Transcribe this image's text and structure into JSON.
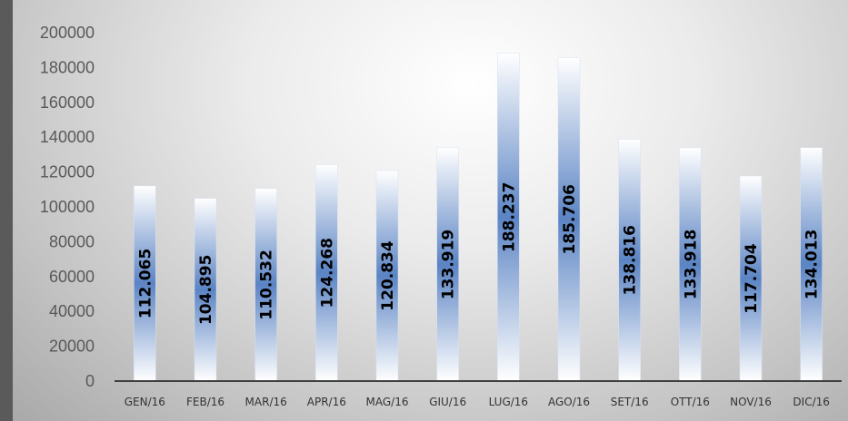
{
  "chart_data": {
    "type": "bar",
    "title": "",
    "xlabel": "",
    "ylabel": "",
    "categories": [
      "GEN/16",
      "FEB/16",
      "MAR/16",
      "APR/16",
      "MAG/16",
      "GIU/16",
      "LUG/16",
      "AGO/16",
      "SET/16",
      "OTT/16",
      "NOV/16",
      "DIC/16"
    ],
    "values": [
      112065,
      104895,
      110532,
      124268,
      120834,
      133919,
      188237,
      185706,
      138816,
      133918,
      117704,
      134013
    ],
    "data_labels": [
      "112.065",
      "104.895",
      "110.532",
      "124.268",
      "120.834",
      "133.919",
      "188.237",
      "185.706",
      "138.816",
      "133.918",
      "117.704",
      "134.013"
    ],
    "yticks": [
      "0",
      "20000",
      "40000",
      "60000",
      "80000",
      "100000",
      "120000",
      "140000",
      "160000",
      "180000",
      "200000"
    ],
    "ylim": [
      0,
      200000
    ],
    "grid": false,
    "legend": "none",
    "colors": {
      "bar_dark": "#5b84c4",
      "bar_light": "#ffffff",
      "axis": "#3f3f3f"
    }
  }
}
